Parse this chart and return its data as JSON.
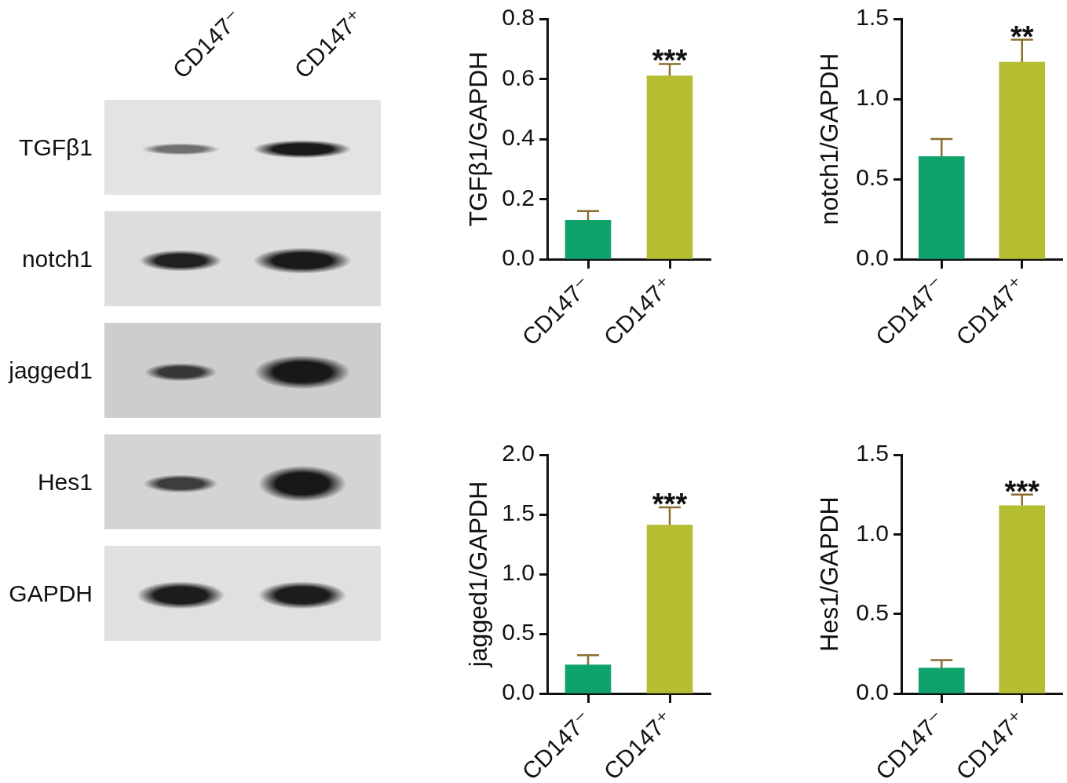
{
  "chart_data": [
    {
      "type": "other",
      "categories": [
        "CD147⁻",
        "CD147⁺"
      ],
      "y_categories": [
        "TGFβ1",
        "notch1",
        "jagged1",
        "Hes1",
        "GAPDH"
      ]
    },
    {
      "type": "bar",
      "categories": [
        "CD147⁻",
        "CD147⁺"
      ],
      "values": [
        0.13,
        0.61
      ],
      "errors": [
        0.03,
        0.04
      ],
      "colors": [
        "#0fa36b",
        "#b5bd30"
      ],
      "ylabel": "TGFβ1/GAPDH",
      "ylim": [
        0,
        0.8
      ],
      "yticks": [
        {
          "value": 0,
          "label": "0.0"
        },
        0.2,
        0.4,
        0.6,
        0.8
      ],
      "annotations": [
        {
          "text": "***",
          "x": "CD147⁺",
          "y": 0.65
        }
      ]
    },
    {
      "type": "bar",
      "categories": [
        "CD147⁻",
        "CD147⁺"
      ],
      "values": [
        0.64,
        1.23
      ],
      "errors": [
        0.11,
        0.14
      ],
      "colors": [
        "#0fa36b",
        "#b5bd30"
      ],
      "ylabel": "notch1/GAPDH",
      "ylim": [
        0,
        1.5
      ],
      "yticks": [
        {
          "value": 0,
          "label": "0.0"
        },
        0.5,
        {
          "value": 1,
          "label": "1.0"
        },
        1.5
      ],
      "annotations": [
        {
          "text": "**",
          "x": "CD147⁺",
          "y": 1.37
        }
      ]
    },
    {
      "type": "bar",
      "categories": [
        "CD147⁻",
        "CD147⁺"
      ],
      "values": [
        0.24,
        1.41
      ],
      "errors": [
        0.08,
        0.15
      ],
      "colors": [
        "#0fa36b",
        "#b5bd30"
      ],
      "ylabel": "jagged1/GAPDH",
      "ylim": [
        0,
        2
      ],
      "yticks": [
        {
          "value": 0,
          "label": "0.0"
        },
        0.5,
        {
          "value": 1,
          "label": "1.0"
        },
        1.5,
        {
          "value": 2,
          "label": "2.0"
        }
      ],
      "annotations": [
        {
          "text": "***",
          "x": "CD147⁺",
          "y": 1.56
        }
      ]
    },
    {
      "type": "bar",
      "categories": [
        "CD147⁻",
        "CD147⁺"
      ],
      "values": [
        0.16,
        1.18
      ],
      "errors": [
        0.05,
        0.07
      ],
      "colors": [
        "#0fa36b",
        "#b5bd30"
      ],
      "ylabel": "Hes1/GAPDH",
      "ylim": [
        0,
        1.5
      ],
      "yticks": [
        {
          "value": 0,
          "label": "0.0"
        },
        0.5,
        {
          "value": 1,
          "label": "1.0"
        },
        1.5
      ],
      "annotations": [
        {
          "text": "***",
          "x": "CD147⁺",
          "y": 1.25
        }
      ]
    }
  ]
}
